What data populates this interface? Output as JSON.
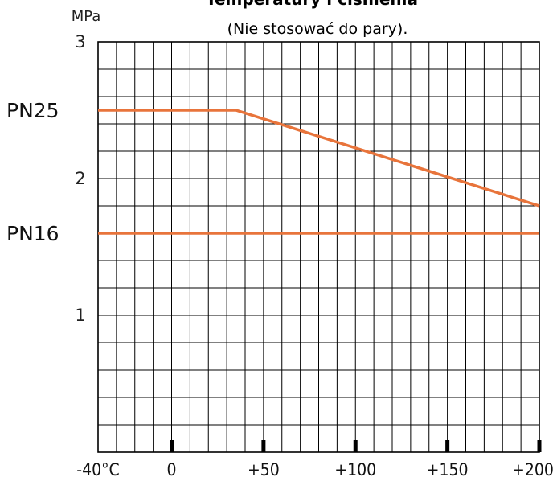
{
  "chart_data": {
    "type": "line",
    "title": "Temperatury i ciśnienia",
    "subtitle": "(Nie stosować do pary).",
    "y_unit": "MPa",
    "x_tick_labels": [
      "-40°C",
      "0",
      "+50",
      "+100",
      "+150",
      "+200"
    ],
    "x_tick_values": [
      -40,
      0,
      50,
      100,
      150,
      200
    ],
    "y_tick_labels": [
      "1",
      "2",
      "3"
    ],
    "y_tick_values": [
      1,
      2,
      3
    ],
    "xlim": [
      -40,
      200
    ],
    "ylim": [
      0,
      3
    ],
    "grid": true,
    "series": [
      {
        "name": "PN25",
        "color": "#e8743b",
        "x": [
          -40,
          35,
          200
        ],
        "y": [
          2.5,
          2.5,
          1.8
        ]
      },
      {
        "name": "PN16",
        "color": "#e8743b",
        "x": [
          -40,
          200
        ],
        "y": [
          1.6,
          1.6
        ]
      }
    ],
    "series_labels": [
      {
        "text": "PN25",
        "y": 2.5
      },
      {
        "text": "PN16",
        "y": 1.6
      }
    ]
  }
}
